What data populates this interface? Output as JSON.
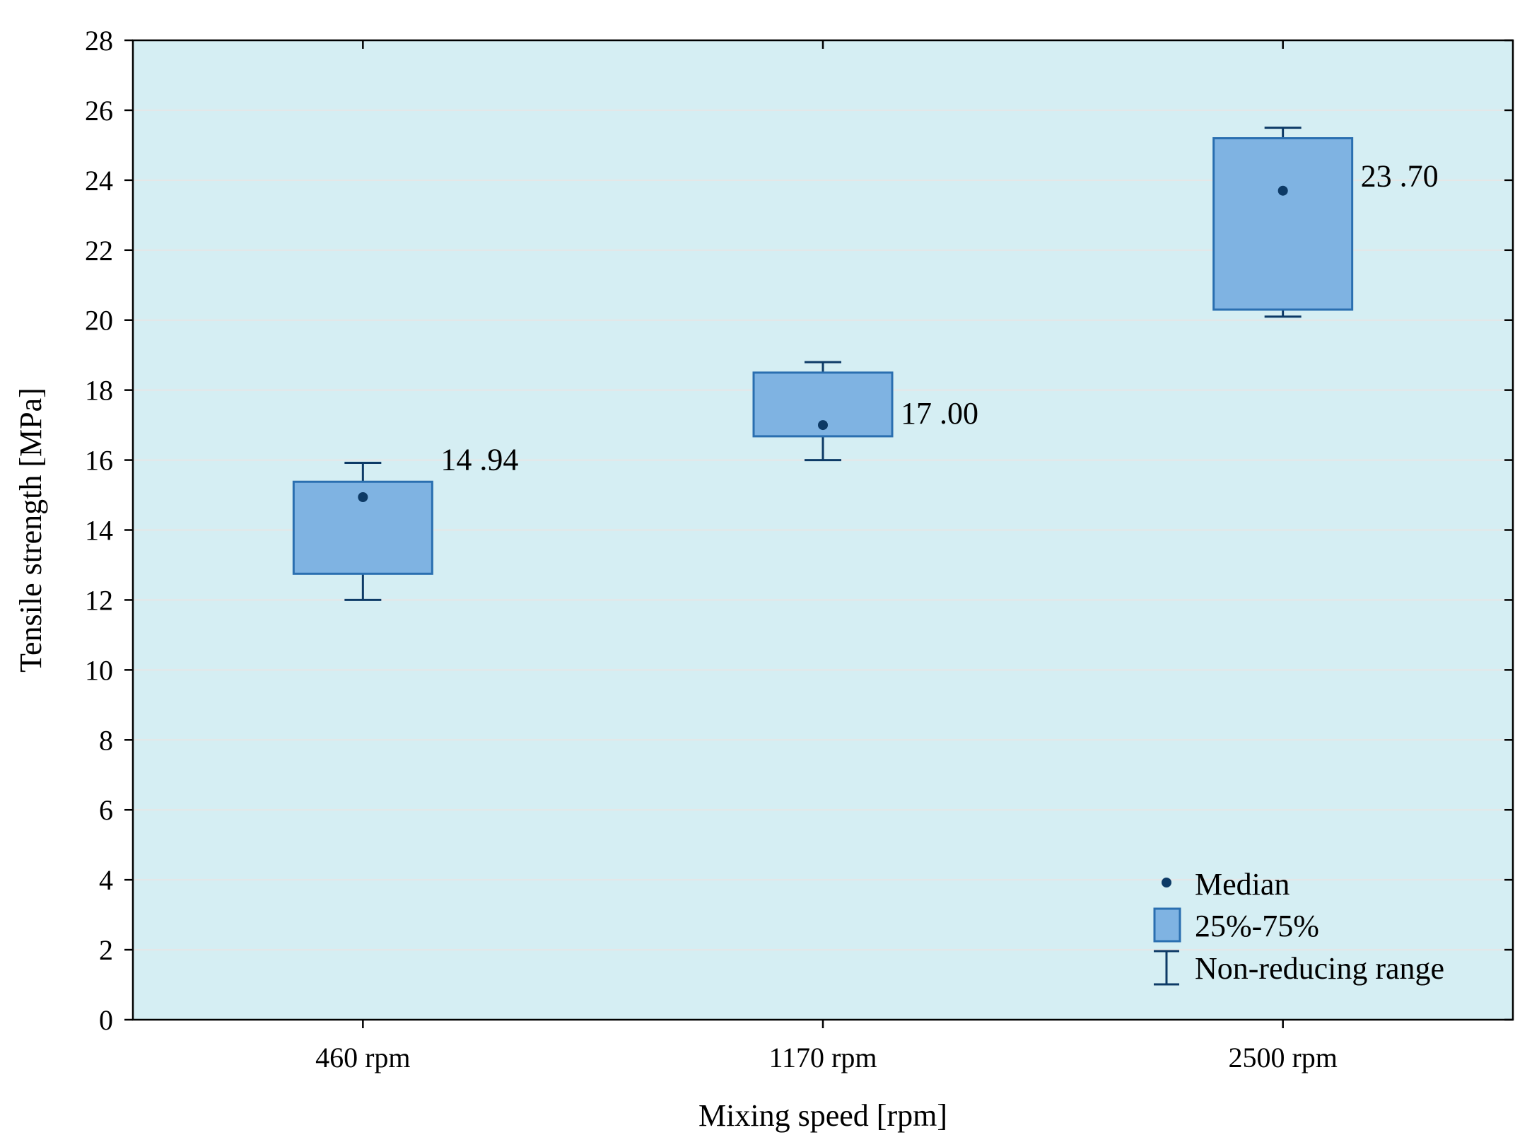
{
  "chart_data": {
    "type": "box",
    "title": "",
    "xlabel": "Mixing speed [rpm]",
    "ylabel": "Tensile strength [MPa]",
    "ylim": [
      0,
      28
    ],
    "yticks": [
      0,
      2,
      4,
      6,
      8,
      10,
      12,
      14,
      16,
      18,
      20,
      22,
      24,
      26,
      28
    ],
    "grid": true,
    "categories": [
      "460 rpm",
      "1170 rpm",
      "2500 rpm"
    ],
    "series": [
      {
        "name": "460 rpm",
        "median": 14.94,
        "q1": 12.75,
        "q3": 15.38,
        "min": 12.0,
        "max": 15.92,
        "label": "14 .94"
      },
      {
        "name": "1170 rpm",
        "median": 17.0,
        "q1": 16.68,
        "q3": 18.5,
        "min": 16.0,
        "max": 18.8,
        "label": "17 .00"
      },
      {
        "name": "2500 rpm",
        "median": 23.7,
        "q1": 20.3,
        "q3": 25.2,
        "min": 20.1,
        "max": 25.5,
        "label": "23 .70"
      }
    ],
    "legend": {
      "position": "bottom-right",
      "entries": [
        "Median",
        "25%-75%",
        "Non-reducing range"
      ]
    },
    "colors": {
      "plot_background": "#d5eef3",
      "box_fill": "#7fb3e2",
      "box_stroke": "#2a6fb0",
      "whisker": "#0d3a66",
      "median_dot": "#0d3a66",
      "gridline": "#e6e6e6",
      "axis": "#000000"
    }
  }
}
